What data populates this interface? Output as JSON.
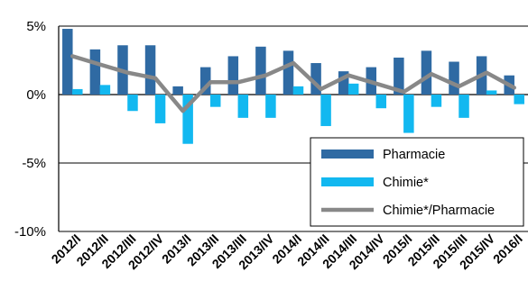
{
  "chart_data": {
    "type": "bar",
    "categories": [
      "2012/I",
      "2012/II",
      "2012/III",
      "2012/IV",
      "2013/I",
      "2013/II",
      "2013/III",
      "2013/IV",
      "2014/I",
      "2014/II",
      "2014/III",
      "2014/IV",
      "2015/I",
      "2015/II",
      "2015/III",
      "2015/IV",
      "2016/I"
    ],
    "series": [
      {
        "name": "Pharmacie",
        "kind": "bar",
        "color": "#2f6aa3",
        "values": [
          4.8,
          3.3,
          3.6,
          3.6,
          0.6,
          2.0,
          2.8,
          3.5,
          3.2,
          2.3,
          1.7,
          2.0,
          2.7,
          3.2,
          2.4,
          2.8,
          1.4
        ]
      },
      {
        "name": "Chimie*",
        "kind": "bar",
        "color": "#12b8f0",
        "values": [
          0.4,
          0.7,
          -1.2,
          -2.1,
          -3.6,
          -0.9,
          -1.7,
          -1.7,
          0.6,
          -2.3,
          0.8,
          -1.0,
          -2.8,
          -0.9,
          -1.7,
          0.3,
          -0.7
        ]
      },
      {
        "name": "Chimie*/Pharmacie",
        "kind": "line",
        "color": "#888888",
        "values": [
          2.8,
          2.2,
          1.6,
          1.2,
          -1.2,
          0.9,
          0.9,
          1.4,
          2.3,
          0.4,
          1.4,
          0.8,
          0.2,
          1.5,
          0.6,
          1.6,
          0.5
        ]
      }
    ],
    "y_ticks": [
      "5%",
      "0%",
      "-5%",
      "-10%"
    ],
    "y_tick_values": [
      5,
      0,
      -5,
      -10
    ],
    "ylim": [
      -10,
      5
    ],
    "grid": true,
    "legend_position": "bottom-right"
  }
}
